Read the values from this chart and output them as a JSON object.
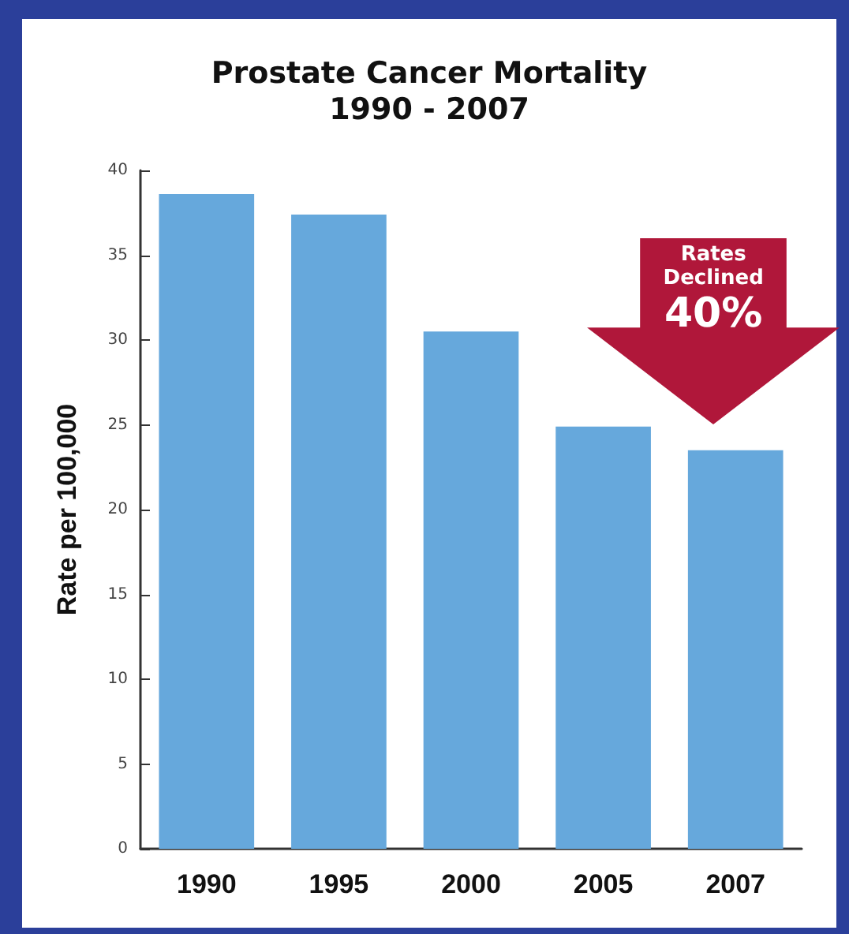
{
  "chart_data": {
    "type": "bar",
    "title": "Prostate Cancer Mortality",
    "subtitle": "1990 - 2007",
    "ylabel": "Rate per 100,000",
    "categories": [
      "1990",
      "1995",
      "2000",
      "2005",
      "2007"
    ],
    "values": [
      38.6,
      37.4,
      30.5,
      24.9,
      23.5
    ],
    "color": "#66a8dc",
    "ylim": [
      0,
      40
    ],
    "yticks": [
      0,
      5,
      10,
      15,
      20,
      25,
      30,
      35,
      40
    ],
    "grid": false,
    "annotations": [
      {
        "text": "Rates Declined 40%",
        "x": "2007",
        "y": 23.5
      }
    ]
  }
}
